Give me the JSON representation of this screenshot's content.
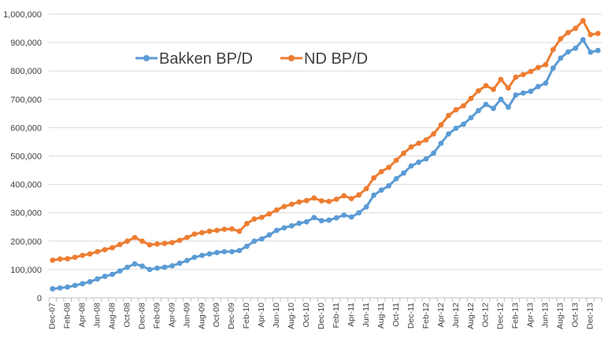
{
  "chart_data": {
    "type": "line",
    "ylim": [
      0,
      1000000
    ],
    "yticks": [
      0,
      100000,
      200000,
      300000,
      400000,
      500000,
      600000,
      700000,
      800000,
      900000,
      1000000
    ],
    "ytick_labels": [
      "0",
      "100,000",
      "200,000",
      "300,000",
      "400,000",
      "500,000",
      "600,000",
      "700,000",
      "800,000",
      "900,000",
      "1,000,000"
    ],
    "grid": true,
    "legend_position": "upper-left",
    "x": [
      "Dec-07",
      "Jan-08",
      "Feb-08",
      "Mar-08",
      "Apr-08",
      "May-08",
      "Jun-08",
      "Jul-08",
      "Aug-08",
      "Sep-08",
      "Oct-08",
      "Nov-08",
      "Dec-08",
      "Jan-09",
      "Feb-09",
      "Mar-09",
      "Apr-09",
      "May-09",
      "Jun-09",
      "Jul-09",
      "Aug-09",
      "Sep-09",
      "Oct-09",
      "Nov-09",
      "Dec-09",
      "Jan-10",
      "Feb-10",
      "Mar-10",
      "Apr-10",
      "May-10",
      "Jun-10",
      "Jul-10",
      "Aug-10",
      "Sep-10",
      "Oct-10",
      "Nov-10",
      "Dec-10",
      "Jan-11",
      "Feb-11",
      "Mar-11",
      "Apr-11",
      "May-11",
      "Jun-11",
      "Jul-11",
      "Aug-11",
      "Sep-11",
      "Oct-11",
      "Nov-11",
      "Dec-11",
      "Jan-12",
      "Feb-12",
      "Mar-12",
      "Apr-12",
      "May-12",
      "Jun-12",
      "Jul-12",
      "Aug-12",
      "Sep-12",
      "Oct-12",
      "Nov-12",
      "Dec-12",
      "Jan-13",
      "Feb-13",
      "Mar-13",
      "Apr-13",
      "May-13",
      "Jun-13",
      "Jul-13",
      "Aug-13",
      "Sep-13",
      "Oct-13",
      "Nov-13",
      "Dec-13",
      "Jan-14"
    ],
    "x_tick_labels": [
      "Dec-07",
      "Feb-08",
      "Apr-08",
      "Jun-08",
      "Aug-08",
      "Oct-08",
      "Dec-08",
      "Feb-09",
      "Apr-09",
      "Jun-09",
      "Aug-09",
      "Oct-09",
      "Dec-09",
      "Feb-10",
      "Apr-10",
      "Jun-10",
      "Aug-10",
      "Oct-10",
      "Dec-10",
      "Feb-11",
      "Apr-11",
      "Jun-11",
      "Aug-11",
      "Oct-11",
      "Dec-11",
      "Feb-12",
      "Apr-12",
      "Jun-12",
      "Aug-12",
      "Oct-12",
      "Dec-12",
      "Feb-13",
      "Apr-13",
      "Jun-13",
      "Aug-13",
      "Oct-13",
      "Dec-13"
    ],
    "series": [
      {
        "name": "Bakken BP/D",
        "color": "#5b9bd5",
        "values": [
          32000,
          35000,
          38000,
          44000,
          50000,
          57000,
          67000,
          76000,
          83000,
          95000,
          108000,
          120000,
          112000,
          100000,
          105000,
          108000,
          113000,
          122000,
          132000,
          143000,
          150000,
          155000,
          160000,
          163000,
          163000,
          167000,
          182000,
          200000,
          208000,
          222000,
          238000,
          247000,
          254000,
          263000,
          268000,
          283000,
          272000,
          274000,
          282000,
          292000,
          285000,
          300000,
          321000,
          362000,
          380000,
          395000,
          420000,
          440000,
          465000,
          478000,
          490000,
          510000,
          545000,
          578000,
          598000,
          612000,
          635000,
          660000,
          682000,
          668000,
          700000,
          672000,
          715000,
          722000,
          728000,
          745000,
          757000,
          810000,
          845000,
          867000,
          880000,
          910000,
          866000,
          872000
        ]
      },
      {
        "name": "ND BP/D",
        "color": "#ed7d31",
        "values": [
          133000,
          137000,
          138000,
          143000,
          150000,
          155000,
          163000,
          170000,
          177000,
          188000,
          200000,
          213000,
          200000,
          187000,
          190000,
          192000,
          195000,
          203000,
          213000,
          225000,
          230000,
          235000,
          238000,
          242000,
          243000,
          235000,
          262000,
          278000,
          284000,
          296000,
          310000,
          322000,
          330000,
          338000,
          343000,
          352000,
          342000,
          340000,
          348000,
          360000,
          350000,
          363000,
          385000,
          423000,
          445000,
          460000,
          485000,
          510000,
          532000,
          545000,
          557000,
          578000,
          610000,
          643000,
          663000,
          677000,
          703000,
          730000,
          748000,
          735000,
          770000,
          740000,
          778000,
          787000,
          798000,
          812000,
          822000,
          875000,
          913000,
          935000,
          950000,
          977000,
          928000,
          932000
        ]
      }
    ]
  }
}
